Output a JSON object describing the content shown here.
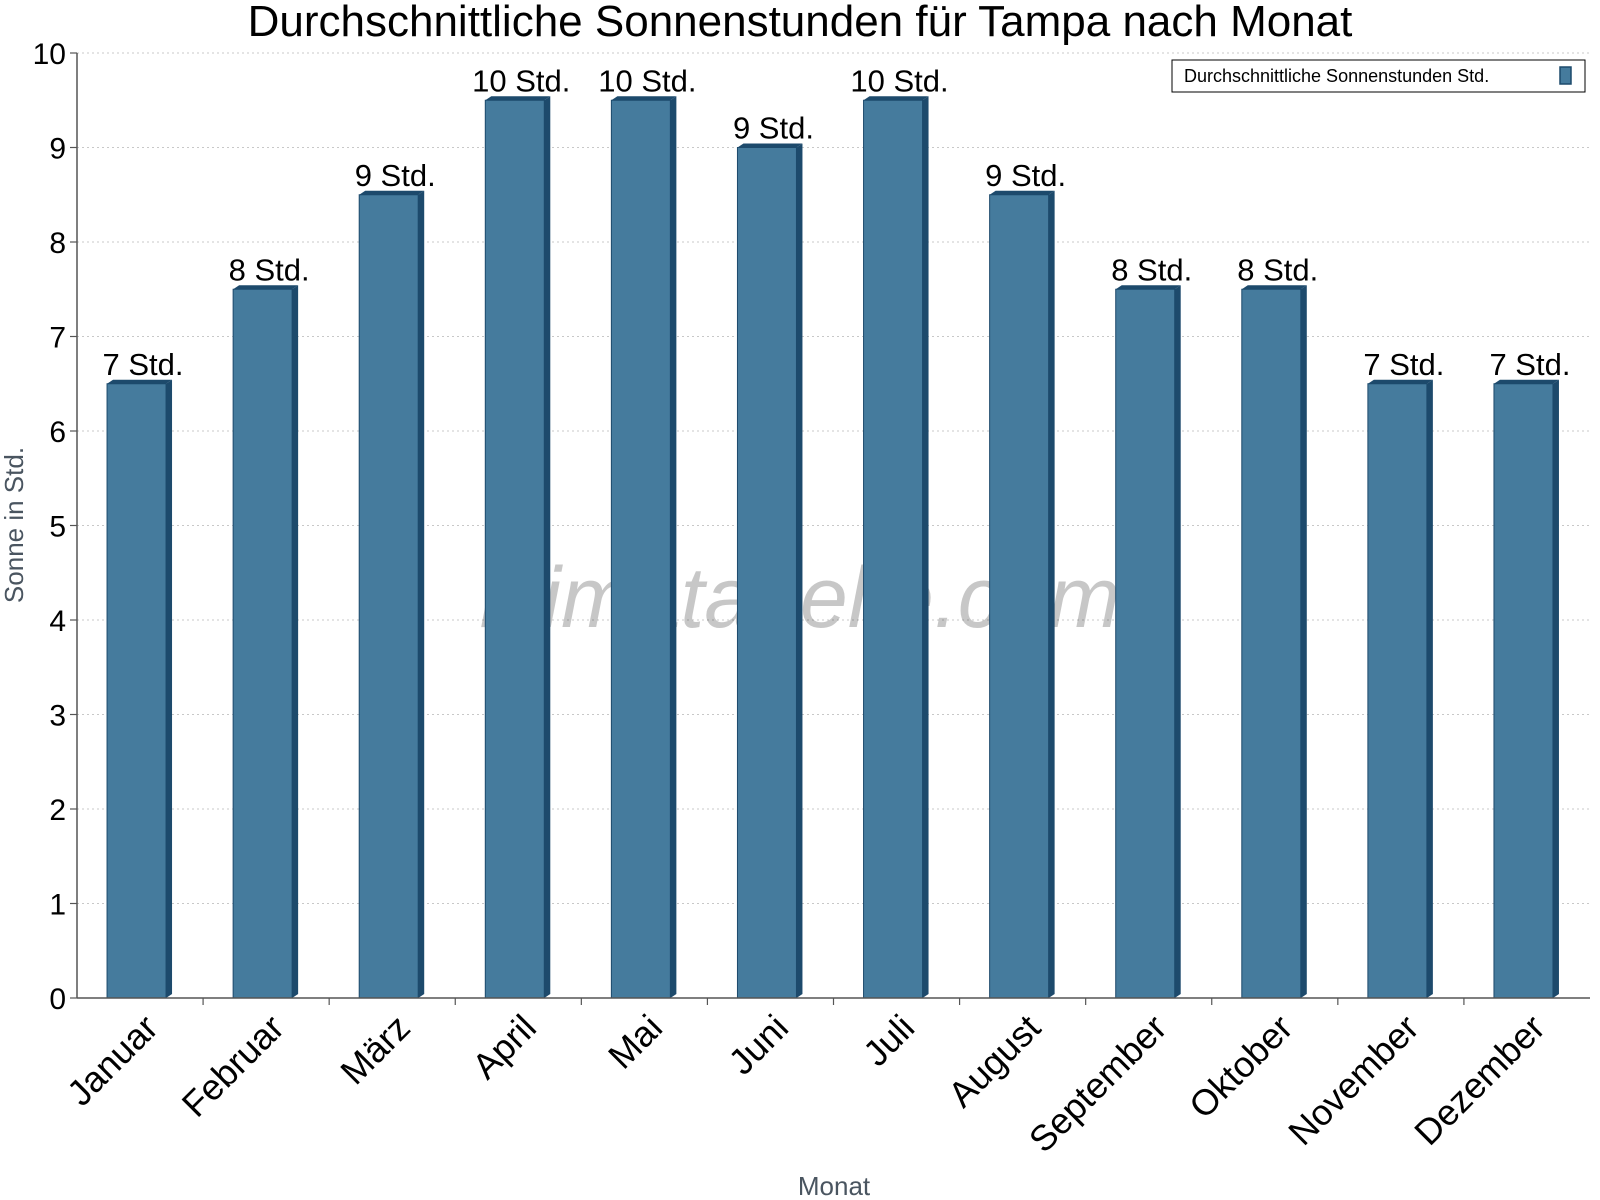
{
  "chart_data": {
    "type": "bar",
    "title": "Durchschnittliche Sonnenstunden für Tampa nach Monat",
    "xlabel": "Monat",
    "ylabel": "Sonne in Std.",
    "ylim": [
      0,
      10
    ],
    "yticks": [
      "0",
      "1",
      "2",
      "3",
      "4",
      "5",
      "6",
      "7",
      "8",
      "9",
      "10"
    ],
    "grid": true,
    "legend_position": "top-right",
    "categories": [
      "Januar",
      "Februar",
      "März",
      "April",
      "Mai",
      "Juni",
      "Juli",
      "August",
      "September",
      "Oktober",
      "November",
      "Dezember"
    ],
    "series": [
      {
        "name": "Durchschnittliche Sonnenstunden Std.",
        "values": [
          6.5,
          7.5,
          8.5,
          9.5,
          9.5,
          9,
          9.5,
          8.5,
          7.5,
          7.5,
          6.5,
          6.5
        ],
        "labels": [
          "7 Std.",
          "8 Std.",
          "9 Std.",
          "10 Std.",
          "10 Std.",
          "9 Std.",
          "10 Std.",
          "9 Std.",
          "8 Std.",
          "8 Std.",
          "7 Std.",
          "7 Std."
        ]
      }
    ],
    "colors": {
      "bar": "#457b9d",
      "bar_edge": "#1d4a6c",
      "axis": "#555555",
      "grid": "#c8c8c8"
    }
  },
  "watermark": "klimatabelle.com"
}
